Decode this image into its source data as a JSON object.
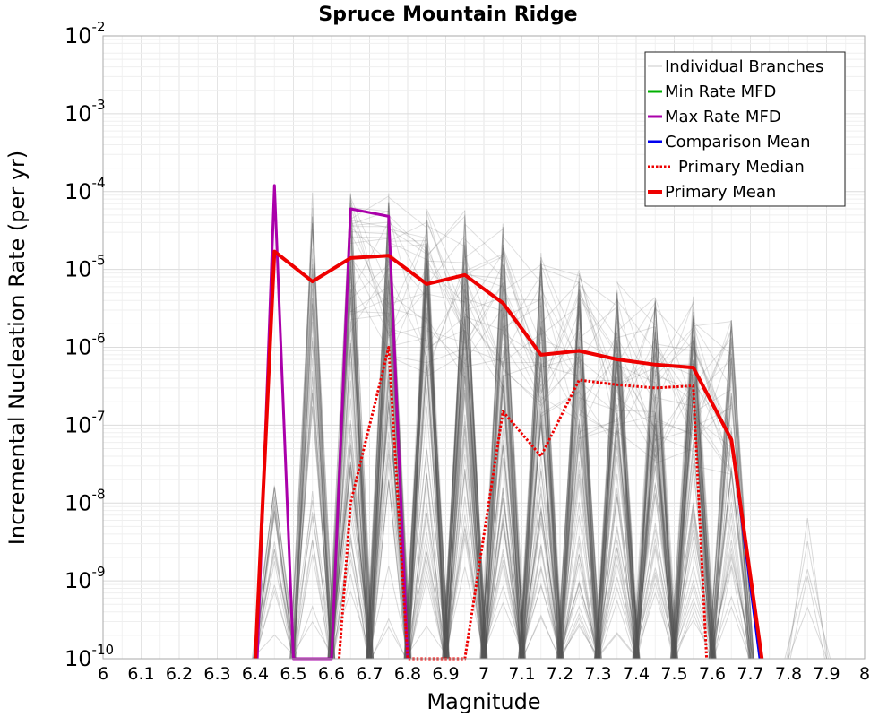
{
  "chart_data": {
    "type": "line",
    "title": "Spruce Mountain Ridge",
    "xlabel": "Magnitude",
    "ylabel": "Incremental Nucleation Rate (per yr)",
    "xlim": [
      6,
      8
    ],
    "ylim": [
      1e-10,
      0.01
    ],
    "yscale": "log",
    "grid": true,
    "legend_position": "top-right",
    "x_ticks": [
      "6",
      "6.1",
      "6.2",
      "6.3",
      "6.4",
      "6.5",
      "6.6",
      "6.7",
      "6.8",
      "6.9",
      "7",
      "7.1",
      "7.2",
      "7.3",
      "7.4",
      "7.5",
      "7.6",
      "7.7",
      "7.8",
      "7.9",
      "8"
    ],
    "y_ticks": [
      {
        "base": "10",
        "exp": "-2"
      },
      {
        "base": "10",
        "exp": "-3"
      },
      {
        "base": "10",
        "exp": "-4"
      },
      {
        "base": "10",
        "exp": "-5"
      },
      {
        "base": "10",
        "exp": "-6"
      },
      {
        "base": "10",
        "exp": "-7"
      },
      {
        "base": "10",
        "exp": "-8"
      },
      {
        "base": "10",
        "exp": "-9"
      },
      {
        "base": "10",
        "exp": "-10"
      }
    ],
    "legend": [
      {
        "label": "Individual Branches",
        "color": "#c8c8c8",
        "style": "solid"
      },
      {
        "label": "Min Rate MFD",
        "color": "#00b000",
        "style": "solid"
      },
      {
        "label": "Max Rate MFD",
        "color": "#aa00aa",
        "style": "solid"
      },
      {
        "label": "Comparison Mean",
        "color": "#0000ee",
        "style": "solid"
      },
      {
        "label": "Primary Median",
        "color": "#ee0000",
        "style": "dotted"
      },
      {
        "label": "Primary Mean",
        "color": "#ee0000",
        "style": "solid"
      }
    ],
    "series": [
      {
        "name": "Primary Mean",
        "color": "#ee0000",
        "style": "solid",
        "x": [
          6.4,
          6.45,
          6.55,
          6.65,
          6.75,
          6.85,
          6.95,
          7.05,
          7.15,
          7.25,
          7.35,
          7.45,
          7.55,
          7.65,
          7.73
        ],
        "y": [
          1e-10,
          1.7e-05,
          7e-06,
          1.4e-05,
          1.5e-05,
          6.5e-06,
          8.5e-06,
          3.7e-06,
          8e-07,
          9e-07,
          7e-07,
          6e-07,
          5.5e-07,
          6.5e-08,
          1e-10
        ]
      },
      {
        "name": "Primary Median",
        "color": "#ee0000",
        "style": "dotted",
        "x": [
          6.62,
          6.65,
          6.75,
          6.8,
          6.95,
          7.05,
          7.15,
          7.25,
          7.35,
          7.45,
          7.55,
          7.585
        ],
        "y": [
          1e-10,
          1e-08,
          1e-06,
          1e-10,
          1e-10,
          1.5e-07,
          4e-08,
          3.8e-07,
          3.3e-07,
          3e-07,
          3.2e-07,
          1e-10
        ]
      },
      {
        "name": "Max Rate MFD",
        "color": "#aa00aa",
        "style": "solid",
        "x": [
          6.405,
          6.45,
          6.5,
          6.6,
          6.65,
          6.75,
          6.8
        ],
        "y": [
          1e-10,
          0.00012,
          1e-10,
          1e-10,
          6e-05,
          4.8e-05,
          1e-10
        ]
      },
      {
        "name": "Comparison Mean",
        "color": "#0000ee",
        "style": "solid",
        "x": [
          7.65,
          7.725
        ],
        "y": [
          6.5e-08,
          1e-10
        ]
      }
    ],
    "branch_peaks": [
      {
        "x": 6.45,
        "top": 2e-08,
        "count": 20
      },
      {
        "x": 6.55,
        "top": 0.0001,
        "count": 40
      },
      {
        "x": 6.65,
        "top": 0.0001,
        "count": 60
      },
      {
        "x": 6.75,
        "top": 0.0001,
        "count": 60
      },
      {
        "x": 6.85,
        "top": 6e-05,
        "count": 60
      },
      {
        "x": 6.95,
        "top": 6e-05,
        "count": 60
      },
      {
        "x": 7.05,
        "top": 4e-05,
        "count": 60
      },
      {
        "x": 7.15,
        "top": 2e-05,
        "count": 60
      },
      {
        "x": 7.25,
        "top": 1e-05,
        "count": 60
      },
      {
        "x": 7.35,
        "top": 7e-06,
        "count": 60
      },
      {
        "x": 7.45,
        "top": 4.5e-06,
        "count": 60
      },
      {
        "x": 7.55,
        "top": 4.5e-06,
        "count": 60
      },
      {
        "x": 7.65,
        "top": 2.5e-06,
        "count": 40
      },
      {
        "x": 7.85,
        "top": 1.5e-08,
        "count": 5
      }
    ]
  }
}
